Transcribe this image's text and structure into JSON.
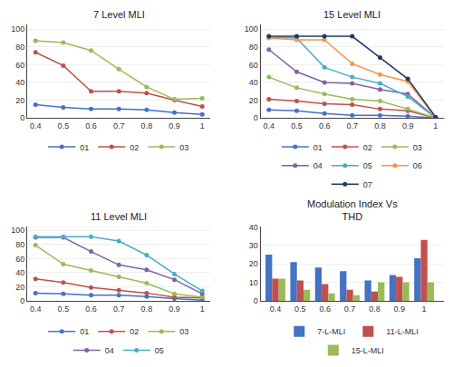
{
  "chart_data": [
    {
      "type": "line",
      "title": "7 Level MLI",
      "x": [
        0.4,
        0.5,
        0.6,
        0.7,
        0.8,
        0.9,
        1.0
      ],
      "series": [
        {
          "name": "01",
          "color": "#4472C4",
          "marker": "circle",
          "values": [
            15,
            12,
            10,
            10,
            9,
            6,
            4
          ]
        },
        {
          "name": "02",
          "color": "#C0504D",
          "marker": "circle",
          "values": [
            74,
            59,
            30,
            30,
            28,
            20,
            13
          ]
        },
        {
          "name": "03",
          "color": "#9BBB59",
          "marker": "circle",
          "values": [
            87,
            85,
            76,
            55,
            35,
            21,
            22
          ]
        }
      ],
      "xlim": [
        0.37,
        1.03
      ],
      "xticks": [
        0.4,
        0.5,
        0.6,
        0.7,
        0.8,
        0.9,
        1
      ],
      "ylim": [
        0,
        105
      ],
      "yticks": [
        0,
        20,
        40,
        60,
        80,
        100
      ],
      "grid": "y",
      "legend": "bottom"
    },
    {
      "type": "line",
      "title": "15 Level MLI",
      "x": [
        0.4,
        0.5,
        0.6,
        0.7,
        0.8,
        0.9,
        1.0
      ],
      "series": [
        {
          "name": "01",
          "color": "#4472C4",
          "marker": "circle",
          "values": [
            9,
            8,
            5,
            3,
            3,
            2,
            0
          ]
        },
        {
          "name": "02",
          "color": "#C0504D",
          "marker": "circle",
          "values": [
            21,
            19,
            16,
            15,
            10,
            8,
            0
          ]
        },
        {
          "name": "03",
          "color": "#9BBB59",
          "marker": "circle",
          "values": [
            46,
            34,
            27,
            21,
            19,
            10,
            0
          ]
        },
        {
          "name": "04",
          "color": "#8064A2",
          "marker": "circle",
          "values": [
            77,
            52,
            40,
            39,
            32,
            27,
            0
          ]
        },
        {
          "name": "05",
          "color": "#4BACC6",
          "marker": "circle",
          "values": [
            91,
            90,
            57,
            46,
            39,
            24,
            0
          ]
        },
        {
          "name": "06",
          "color": "#F79646",
          "marker": "circle",
          "values": [
            90,
            88,
            88,
            61,
            49,
            41,
            0
          ]
        },
        {
          "name": "07",
          "color": "#1F3864",
          "marker": "circle",
          "values": [
            92,
            92,
            92,
            92,
            68,
            44,
            1
          ]
        }
      ],
      "xlim": [
        0.37,
        1.03
      ],
      "xticks": [
        0.4,
        0.5,
        0.6,
        0.7,
        0.8,
        0.9,
        1
      ],
      "ylim": [
        0,
        105
      ],
      "yticks": [
        0,
        20,
        40,
        60,
        80,
        100
      ],
      "grid": "y",
      "legend": "bottom"
    },
    {
      "type": "line",
      "title": "11 Level MLI",
      "x": [
        0.4,
        0.5,
        0.6,
        0.7,
        0.8,
        0.9,
        1.0
      ],
      "series": [
        {
          "name": "01",
          "color": "#4472C4",
          "marker": "circle",
          "values": [
            11,
            10,
            8,
            8,
            6,
            3,
            1
          ]
        },
        {
          "name": "02",
          "color": "#C0504D",
          "marker": "circle",
          "values": [
            31,
            26,
            19,
            15,
            11,
            5,
            4
          ]
        },
        {
          "name": "03",
          "color": "#9BBB59",
          "marker": "circle",
          "values": [
            79,
            52,
            43,
            34,
            25,
            10,
            5
          ]
        },
        {
          "name": "04",
          "color": "#8064A2",
          "marker": "circle",
          "values": [
            90,
            90,
            70,
            51,
            44,
            30,
            10
          ]
        },
        {
          "name": "05",
          "color": "#4BACC6",
          "marker": "circle",
          "values": [
            91,
            91,
            91,
            85,
            65,
            38,
            14
          ]
        }
      ],
      "xlim": [
        0.37,
        1.03
      ],
      "xticks": [
        0.4,
        0.5,
        0.6,
        0.7,
        0.8,
        0.9,
        1
      ],
      "ylim": [
        0,
        105
      ],
      "yticks": [
        0,
        20,
        40,
        60,
        80,
        100
      ],
      "grid": "y",
      "legend": "bottom"
    },
    {
      "type": "bar",
      "title": "Modulation Index Vs\nTHD",
      "x": [
        0.4,
        0.5,
        0.6,
        0.7,
        0.8,
        0.9,
        1.0
      ],
      "series": [
        {
          "name": "7-L-MLI",
          "color": "#4472C4",
          "values": [
            25,
            21,
            18,
            16,
            11,
            14,
            23
          ]
        },
        {
          "name": "11-L-MLI",
          "color": "#C0504D",
          "values": [
            12,
            11,
            9,
            6,
            5,
            13,
            33
          ]
        },
        {
          "name": "15-L-MLI",
          "color": "#9BBB59",
          "values": [
            12,
            6,
            4,
            3,
            10,
            10,
            10
          ]
        }
      ],
      "xlim": [
        0.34,
        1.08
      ],
      "xticks": [
        0.4,
        0.5,
        0.6,
        0.7,
        0.8,
        0.9,
        1
      ],
      "ylim": [
        0,
        40
      ],
      "yticks": [
        0,
        10,
        20,
        30,
        40
      ],
      "grid": "y",
      "legend": "bottom"
    }
  ]
}
